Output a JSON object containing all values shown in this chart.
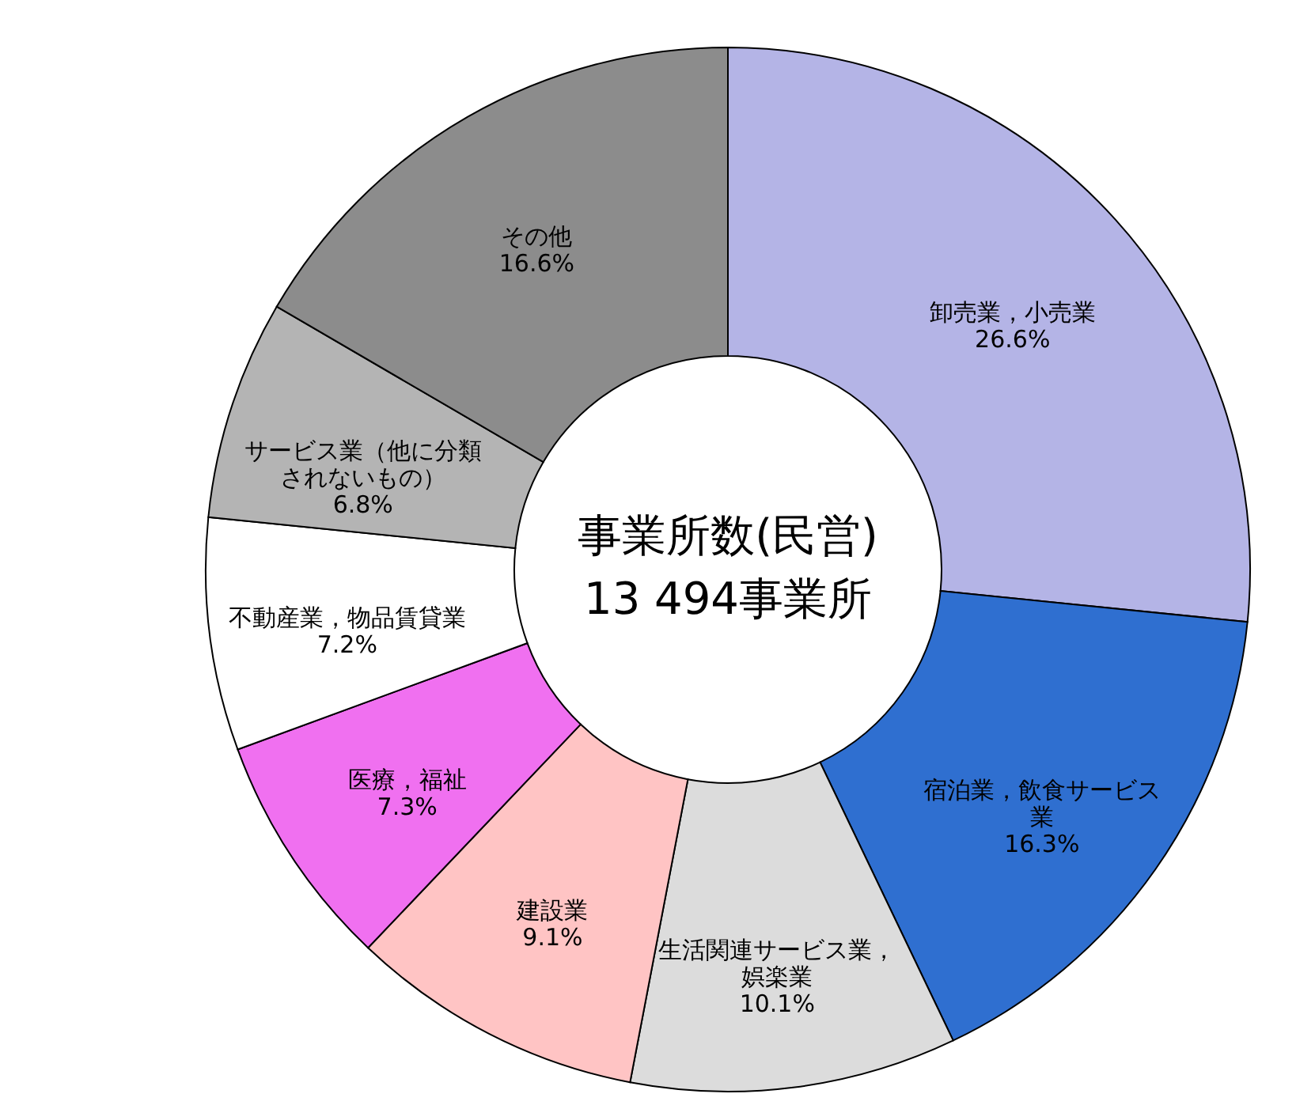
{
  "chart_data": {
    "type": "donut",
    "title": "事業所数(民営)",
    "subtitle": "13 494事業所",
    "categories": [
      "卸売業，小売業",
      "宿泊業，飲食サービス業",
      "生活関連サービス業，娯楽業",
      "建設業",
      "医療，福祉",
      "不動産業，物品賃貸業",
      "サービス業（他に分類されないもの）",
      "その他"
    ],
    "values": [
      26.6,
      16.3,
      10.1,
      9.1,
      7.3,
      7.2,
      6.8,
      16.6
    ],
    "value_labels": [
      "26.6%",
      "16.3%",
      "10.1%",
      "9.1%",
      "7.3%",
      "7.2%",
      "6.8%",
      "16.6%"
    ],
    "colors": [
      "#b4b4e6",
      "#2f6fd0",
      "#dcdcdc",
      "#ffc4c4",
      "#f070f0",
      "#ffffff",
      "#b4b4b4",
      "#8c8c8c"
    ]
  }
}
